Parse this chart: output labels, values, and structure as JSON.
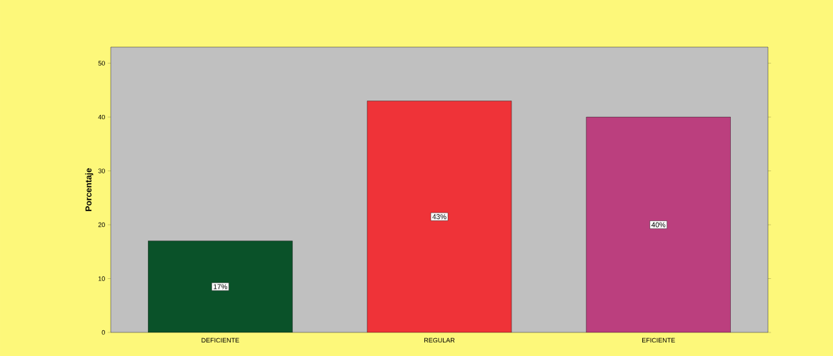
{
  "chart_data": {
    "type": "bar",
    "ylabel": "Porcentaje",
    "categories": [
      "DEFICIENTE",
      "REGULAR",
      "EFICIENTE"
    ],
    "values": [
      17,
      43,
      40
    ],
    "colors": [
      "#0a5229",
      "#ef3338",
      "#bb3f7e"
    ],
    "value_labels": [
      "17%",
      "43%",
      "40%"
    ],
    "ylim": [
      0,
      53
    ],
    "yticks": [
      0,
      10,
      20,
      30,
      40,
      50
    ],
    "grid": false
  }
}
